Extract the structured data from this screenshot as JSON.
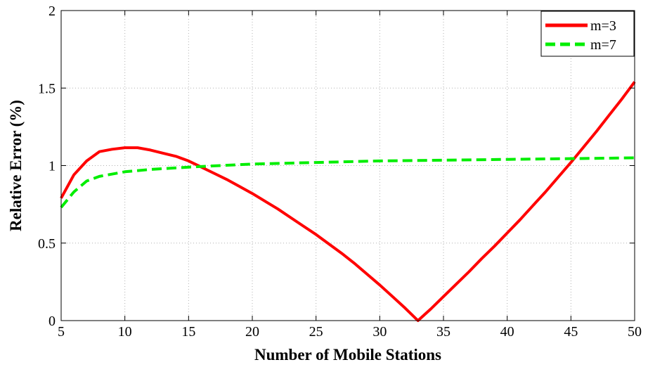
{
  "chart_data": {
    "type": "line",
    "title": "",
    "xlabel": "Number of Mobile Stations",
    "ylabel": "Relative Error (%)",
    "xlim": [
      5,
      50
    ],
    "ylim": [
      0,
      2
    ],
    "xticks": [
      5,
      10,
      15,
      20,
      25,
      30,
      35,
      40,
      45,
      50
    ],
    "yticks": [
      0,
      0.5,
      1,
      1.5,
      2
    ],
    "xtick_labels": [
      "5",
      "10",
      "15",
      "20",
      "25",
      "30",
      "35",
      "40",
      "45",
      "50"
    ],
    "ytick_labels": [
      "0",
      "0.5",
      "1",
      "1.5",
      "2"
    ],
    "grid": true,
    "legend": "top-right",
    "series": [
      {
        "name": "m=3",
        "color": "#ff0000",
        "style": "solid",
        "x": [
          5,
          6,
          7,
          8,
          9,
          10,
          11,
          12,
          13,
          14,
          15,
          16,
          17,
          18,
          19,
          20,
          21,
          22,
          23,
          24,
          25,
          26,
          27,
          28,
          29,
          30,
          31,
          32,
          33,
          34,
          35,
          36,
          37,
          38,
          39,
          40,
          41,
          42,
          43,
          44,
          45,
          46,
          47,
          48,
          49,
          50
        ],
        "values": [
          0.79,
          0.94,
          1.03,
          1.09,
          1.105,
          1.115,
          1.115,
          1.1,
          1.08,
          1.06,
          1.03,
          0.99,
          0.95,
          0.91,
          0.865,
          0.82,
          0.77,
          0.72,
          0.665,
          0.61,
          0.555,
          0.495,
          0.435,
          0.37,
          0.3,
          0.23,
          0.155,
          0.08,
          0.0,
          0.075,
          0.155,
          0.235,
          0.315,
          0.4,
          0.48,
          0.565,
          0.65,
          0.74,
          0.83,
          0.925,
          1.02,
          1.12,
          1.22,
          1.325,
          1.43,
          1.54
        ]
      },
      {
        "name": "m=7",
        "color": "#00ee00",
        "style": "dashed",
        "x": [
          5,
          6,
          7,
          8,
          10,
          12,
          15,
          20,
          25,
          30,
          35,
          40,
          45,
          50
        ],
        "values": [
          0.73,
          0.83,
          0.9,
          0.93,
          0.96,
          0.975,
          0.99,
          1.01,
          1.02,
          1.03,
          1.035,
          1.04,
          1.045,
          1.05
        ]
      }
    ]
  }
}
